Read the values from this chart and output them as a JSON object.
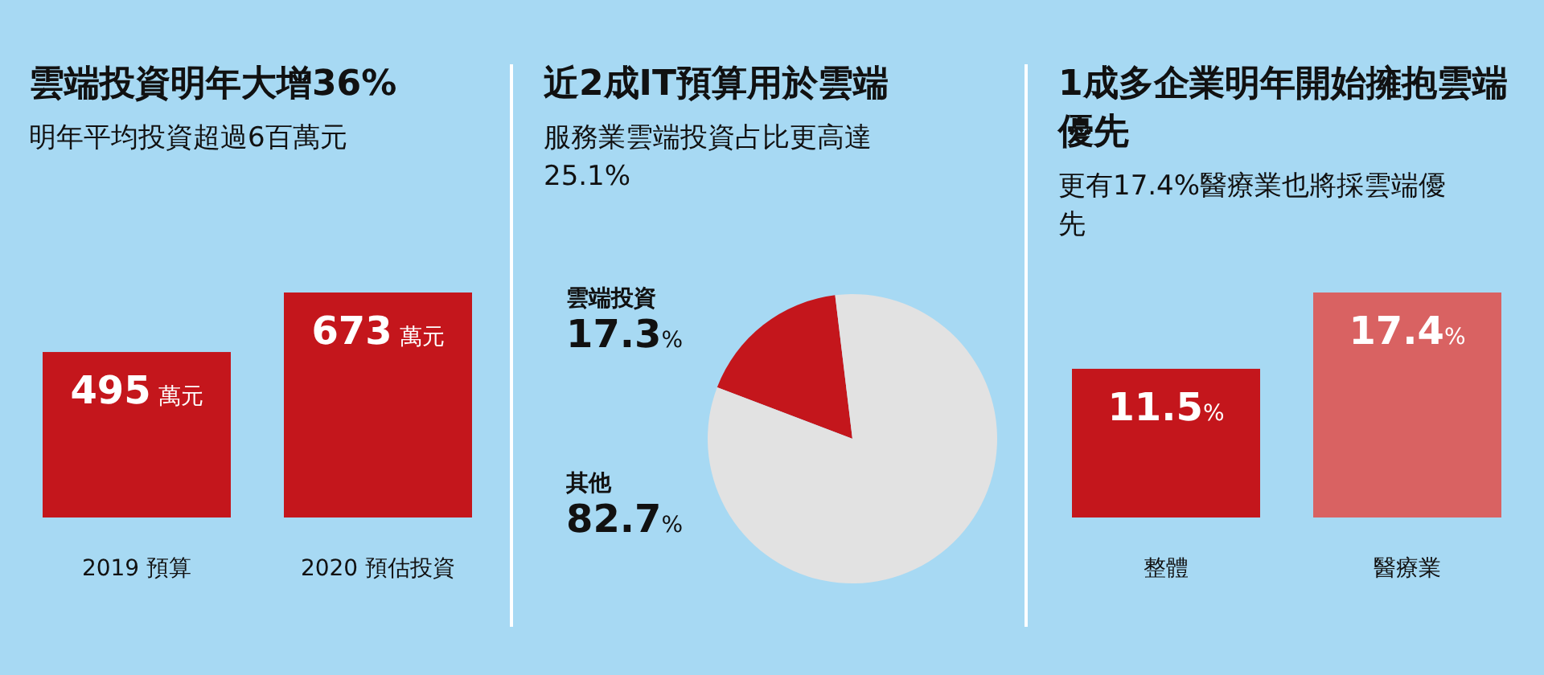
{
  "chart_data": [
    {
      "type": "bar",
      "title": "雲端投資明年大增36%",
      "subtitle": "明年平均投資超過6百萬元",
      "categories": [
        "2019 預算",
        "2020 預估投資"
      ],
      "values": [
        495,
        673
      ],
      "value_labels": [
        "495 萬元",
        "673 萬元"
      ],
      "colors": [
        "#c4161c",
        "#c4161c"
      ]
    },
    {
      "type": "pie",
      "title": "近2成IT預算用於雲端",
      "subtitle": "服務業雲端投資占比更高達25.1%",
      "categories": [
        "雲端投資",
        "其他"
      ],
      "values": [
        17.3,
        82.7
      ],
      "value_labels": [
        "17.3%",
        "82.7%"
      ],
      "colors": [
        "#c4161c",
        "#e2e2e2"
      ]
    },
    {
      "type": "bar",
      "title": "1成多企業明年開始擁抱雲端優先",
      "subtitle": "更有17.4%醫療業也將採雲端優先",
      "categories": [
        "整體",
        "醫療業"
      ],
      "values": [
        11.5,
        17.4
      ],
      "value_labels": [
        "11.5%",
        "17.4%"
      ],
      "colors": [
        "#c4161c",
        "#d96262"
      ]
    }
  ]
}
